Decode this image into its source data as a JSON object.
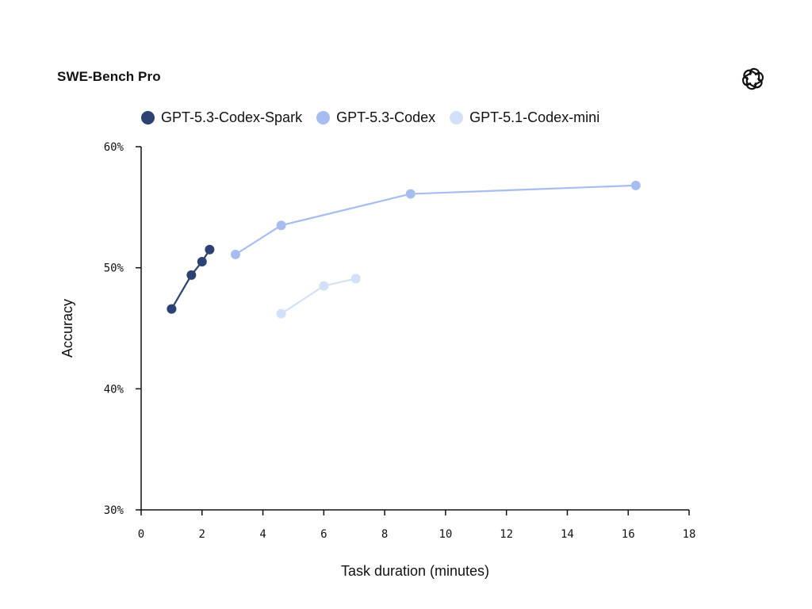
{
  "chart_data": {
    "type": "line",
    "title": "SWE-Bench Pro",
    "xlabel": "Task duration (minutes)",
    "ylabel": "Accuracy",
    "xlim": [
      0,
      18
    ],
    "ylim": [
      30,
      60
    ],
    "xticks": [
      0,
      2,
      4,
      6,
      8,
      10,
      12,
      14,
      16,
      18
    ],
    "yticks": [
      30,
      40,
      50,
      60
    ],
    "ytick_suffix": "%",
    "grid": false,
    "legend_position": "top",
    "series": [
      {
        "name": "GPT-5.3-Codex-Spark",
        "color": "#2b4272",
        "points": [
          {
            "x": 1.0,
            "y": 46.6
          },
          {
            "x": 1.65,
            "y": 49.4
          },
          {
            "x": 2.0,
            "y": 50.5
          },
          {
            "x": 2.25,
            "y": 51.5
          }
        ]
      },
      {
        "name": "GPT-5.3-Codex",
        "color": "#a7bdf0",
        "points": [
          {
            "x": 3.1,
            "y": 51.1
          },
          {
            "x": 4.6,
            "y": 53.5
          },
          {
            "x": 8.85,
            "y": 56.1
          },
          {
            "x": 16.25,
            "y": 56.8
          }
        ]
      },
      {
        "name": "GPT-5.1-Codex-mini",
        "color": "#d3e1f8",
        "points": [
          {
            "x": 4.6,
            "y": 46.2
          },
          {
            "x": 6.0,
            "y": 48.5
          },
          {
            "x": 7.05,
            "y": 49.1
          }
        ]
      }
    ]
  },
  "logo": {
    "name": "openai-logo-icon",
    "color": "#111111"
  }
}
